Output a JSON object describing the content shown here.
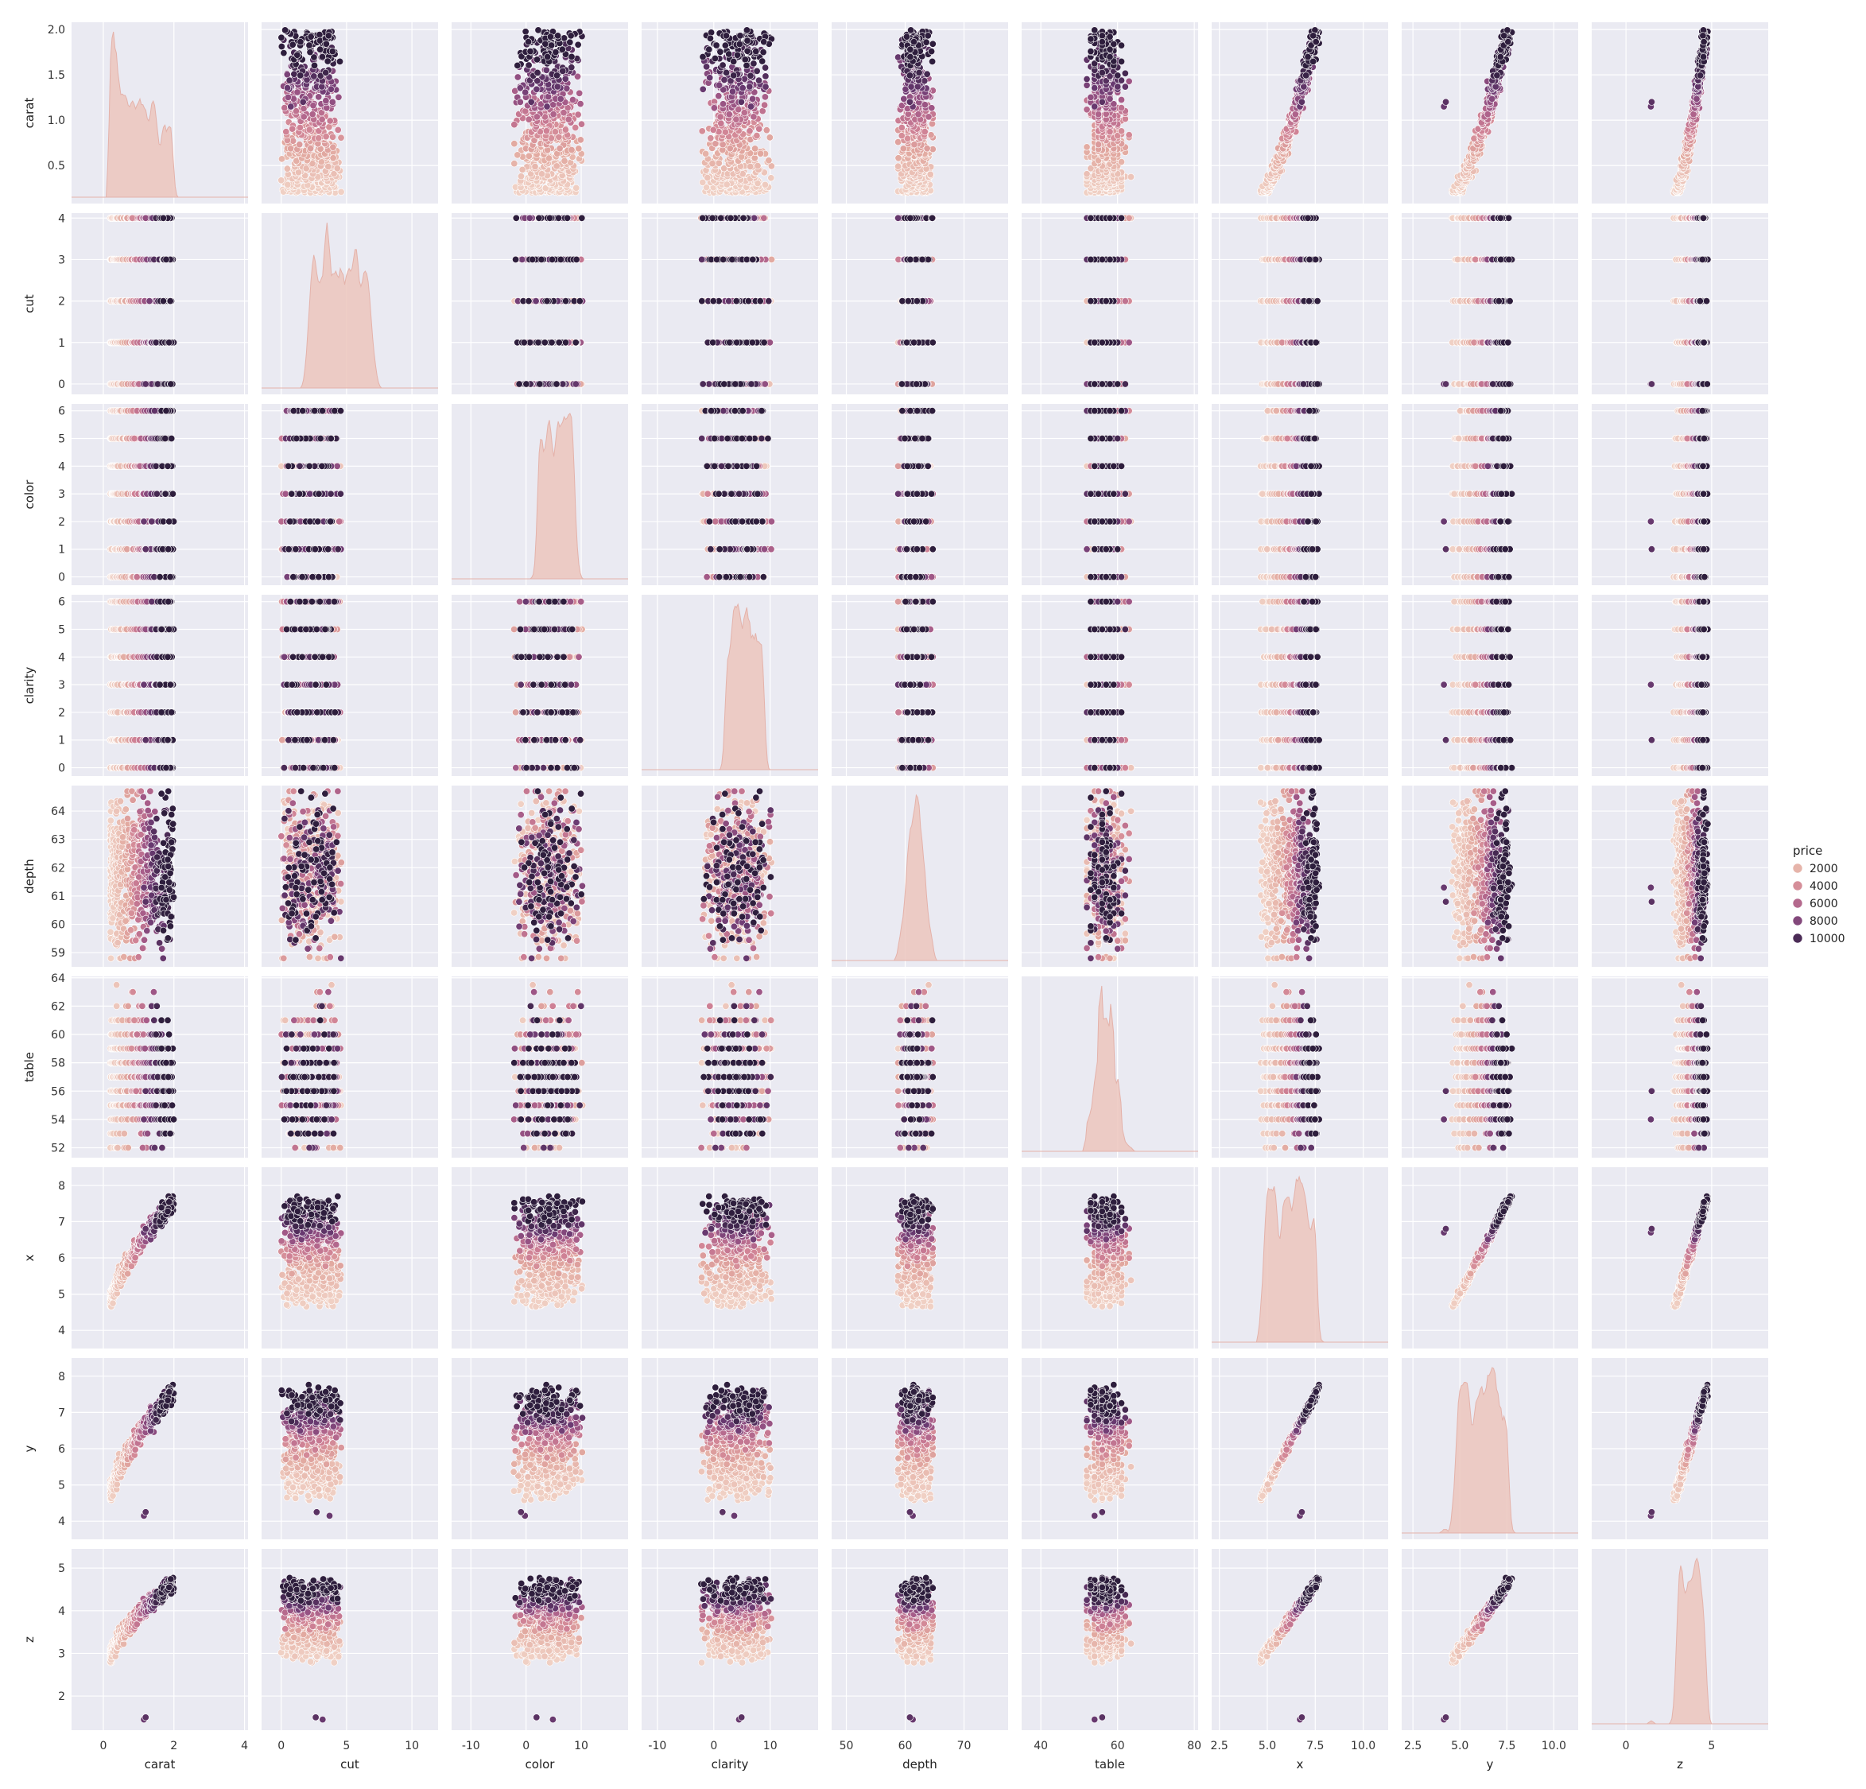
{
  "chart_data": {
    "type": "scatter",
    "variables": [
      "carat",
      "cut",
      "color",
      "clarity",
      "depth",
      "table",
      "x",
      "y",
      "z"
    ],
    "axes": {
      "carat": {
        "lim": [
          -0.9,
          4.1
        ],
        "ticks": [
          0,
          2,
          4
        ],
        "hue_anchor": [
          1.0,
          4000
        ],
        "hue_slope": 5000
      },
      "cut": {
        "lim": [
          -1.5,
          12.0
        ],
        "ticks": [
          0,
          5,
          10
        ],
        "jitter": 0.3
      },
      "color": {
        "lim": [
          -13.5,
          18.5
        ],
        "ticks": [
          -10,
          0,
          10
        ],
        "jitter": 0.3
      },
      "clarity": {
        "lim": [
          -12.8,
          18.5
        ],
        "ticks": [
          -10,
          0,
          10
        ],
        "jitter": 0.3
      },
      "depth": {
        "lim": [
          47.5,
          77.5
        ],
        "ticks": [
          50,
          60,
          70
        ]
      },
      "table": {
        "lim": [
          35,
          81
        ],
        "ticks": [
          40,
          60,
          80
        ]
      },
      "x": {
        "lim": [
          2.1,
          11.3
        ],
        "ticks": [
          2.5,
          5.0,
          7.5,
          10.0
        ],
        "hue_anchor": [
          5.7,
          4000
        ],
        "hue_slope": 3000
      },
      "y": {
        "lim": [
          1.9,
          11.3
        ],
        "ticks": [
          2.5,
          5.0,
          7.5,
          10.0
        ],
        "hue_anchor": [
          5.7,
          4000
        ],
        "hue_slope": 3000
      },
      "z": {
        "lim": [
          -2.0,
          8.3
        ],
        "ticks": [
          0,
          5
        ],
        "hue_anchor": [
          3.5,
          4000
        ],
        "hue_slope": 4800
      }
    },
    "row_ticks": {
      "carat": {
        "lim": [
          0.08,
          2.08
        ],
        "ticks": [
          0.5,
          1.0,
          1.5,
          2.0
        ]
      },
      "cut": {
        "lim": [
          -0.25,
          4.12
        ],
        "ticks": [
          0,
          1,
          2,
          3,
          4
        ]
      },
      "color": {
        "lim": [
          -0.3,
          6.25
        ],
        "ticks": [
          0,
          1,
          2,
          3,
          4,
          5,
          6
        ]
      },
      "clarity": {
        "lim": [
          -0.3,
          6.25
        ],
        "ticks": [
          0,
          1,
          2,
          3,
          4,
          5,
          6
        ]
      },
      "depth": {
        "lim": [
          58.5,
          64.9
        ],
        "ticks": [
          59,
          60,
          61,
          62,
          63,
          64
        ]
      },
      "table": {
        "lim": [
          51.3,
          64.1
        ],
        "ticks": [
          52,
          54,
          56,
          58,
          60,
          62,
          64
        ]
      },
      "x": {
        "lim": [
          3.5,
          8.5
        ],
        "ticks": [
          4,
          5,
          6,
          7,
          8
        ]
      },
      "y": {
        "lim": [
          3.5,
          8.5
        ],
        "ticks": [
          4,
          5,
          6,
          7,
          8
        ]
      },
      "z": {
        "lim": [
          1.2,
          5.45
        ],
        "ticks": [
          2,
          3,
          4,
          5
        ]
      }
    },
    "data_ranges": {
      "carat": [
        0.2,
        2.0
      ],
      "cut": [
        0,
        4
      ],
      "color": [
        0,
        6
      ],
      "clarity": [
        0,
        6
      ],
      "depth": [
        58.8,
        64.7
      ],
      "table": [
        52,
        63.5
      ],
      "x": [
        3.8,
        8.3
      ],
      "y": [
        3.8,
        8.3
      ],
      "z": [
        2.3,
        5.3
      ]
    },
    "diagonal": "kde",
    "hue": {
      "name": "price",
      "legend_title": "price",
      "legend_entries": [
        {
          "label": "2000",
          "value": 2000
        },
        {
          "label": "4000",
          "value": 4000
        },
        {
          "label": "6000",
          "value": 6000
        },
        {
          "label": "8000",
          "value": 8000
        },
        {
          "label": "10000",
          "value": 10000
        }
      ],
      "colormap": [
        "#f0d0c4",
        "#e2a9a0",
        "#cf8195",
        "#a45a88",
        "#6b3a72",
        "#2e1e3d"
      ]
    },
    "style": {
      "facecolor": "#eaeaf2",
      "gridcolor": "#ffffff",
      "grid": true,
      "legend": "right-center"
    }
  },
  "labels": {
    "legend_title": "price"
  }
}
